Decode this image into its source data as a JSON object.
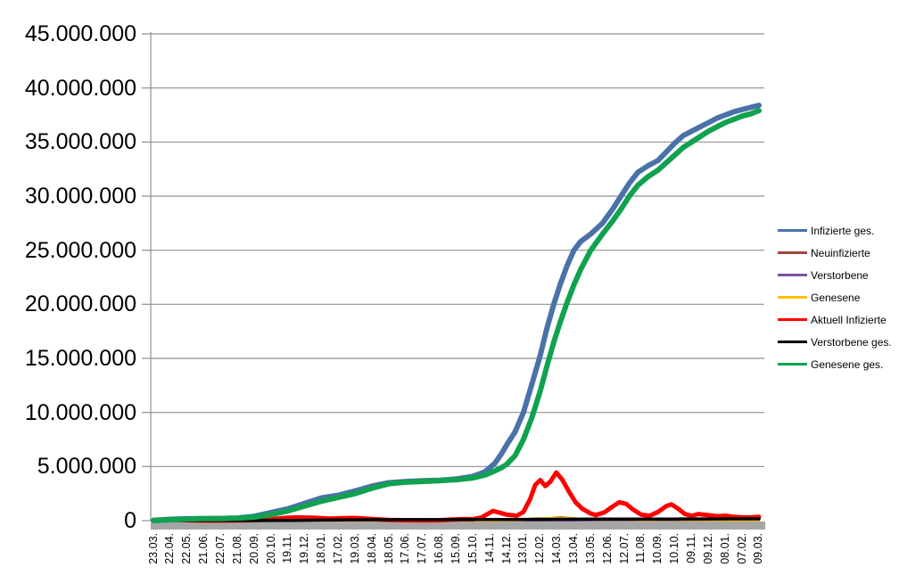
{
  "page": {
    "background": "#FFFFFF",
    "title": ""
  },
  "style": {
    "grid_color": "#909090",
    "axis_color": "#8F8F8F",
    "axis_bar_color": "#A6A6A6",
    "text_color": "#000000"
  },
  "chart_data": {
    "type": "line",
    "title": "",
    "legend_position": "right",
    "grid": "horizontal",
    "value_unit": "persons (series values stored in millions)",
    "y_axis": {
      "min": 0,
      "max": 45000000,
      "tick_interval": 5000000,
      "tick_labels": [
        "45.000.000",
        "40.000.000",
        "35.000.000",
        "30.000.000",
        "25.000.000",
        "20.000.000",
        "15.000.000",
        "10.000.000",
        "5.000.000",
        "0"
      ]
    },
    "x_axis": {
      "tick_labels": [
        "23.03.",
        "22.04.",
        "22.05.",
        "21.06.",
        "22.07.",
        "21.08.",
        "20.09.",
        "20.10.",
        "19.11.",
        "19.12.",
        "18.01.",
        "17.02.",
        "19.03.",
        "18.04.",
        "18.05.",
        "17.06.",
        "17.07.",
        "16.08.",
        "15.09.",
        "15.10.",
        "14.11.",
        "14.12.",
        "13.01.",
        "12.02.",
        "14.03.",
        "13.04.",
        "13.05.",
        "12.06.",
        "12.07.",
        "11.08.",
        "10.09.",
        "10.10.",
        "09.11.",
        "09.12.",
        "08.01.",
        "07.02.",
        "09.03."
      ]
    },
    "series": [
      {
        "name": "Infizierte ges.",
        "color": "#4A72A8",
        "line_width": 6,
        "points_millions": [
          [
            0,
            0.03
          ],
          [
            1,
            0.12
          ],
          [
            2,
            0.17
          ],
          [
            3,
            0.19
          ],
          [
            4,
            0.2
          ],
          [
            5,
            0.24
          ],
          [
            6,
            0.4
          ],
          [
            7,
            0.75
          ],
          [
            8,
            1.1
          ],
          [
            9,
            1.6
          ],
          [
            10,
            2.1
          ],
          [
            11,
            2.35
          ],
          [
            12,
            2.75
          ],
          [
            13,
            3.2
          ],
          [
            14,
            3.5
          ],
          [
            15,
            3.62
          ],
          [
            16,
            3.68
          ],
          [
            17,
            3.73
          ],
          [
            18,
            3.85
          ],
          [
            19,
            4.1
          ],
          [
            19.7,
            4.5
          ],
          [
            20.3,
            5.3
          ],
          [
            20.7,
            6.2
          ],
          [
            21,
            7.0
          ],
          [
            21.5,
            8.2
          ],
          [
            22,
            10.0
          ],
          [
            22.5,
            12.6
          ],
          [
            23,
            15.3
          ],
          [
            23.4,
            17.8
          ],
          [
            23.8,
            20.0
          ],
          [
            24.2,
            21.9
          ],
          [
            24.6,
            23.6
          ],
          [
            25,
            25.0
          ],
          [
            25.4,
            25.8
          ],
          [
            26,
            26.5
          ],
          [
            26.7,
            27.5
          ],
          [
            27.3,
            28.8
          ],
          [
            27.8,
            30.0
          ],
          [
            28.3,
            31.2
          ],
          [
            28.8,
            32.2
          ],
          [
            29.4,
            32.8
          ],
          [
            30,
            33.3
          ],
          [
            30.5,
            34.1
          ],
          [
            31,
            34.9
          ],
          [
            31.5,
            35.6
          ],
          [
            32,
            36.0
          ],
          [
            32.5,
            36.4
          ],
          [
            33,
            36.8
          ],
          [
            33.5,
            37.2
          ],
          [
            34,
            37.5
          ],
          [
            34.5,
            37.8
          ],
          [
            35,
            38.0
          ],
          [
            35.5,
            38.2
          ],
          [
            36,
            38.4
          ]
        ]
      },
      {
        "name": "Neuinfizierte",
        "color": "#9E4741",
        "line_width": 2.6,
        "points_millions": [
          [
            0,
            0.005
          ],
          [
            6,
            0.01
          ],
          [
            7,
            0.02
          ],
          [
            8,
            0.03
          ],
          [
            9,
            0.03
          ],
          [
            10,
            0.02
          ],
          [
            11,
            0.015
          ],
          [
            12,
            0.02
          ],
          [
            13,
            0.015
          ],
          [
            14,
            0.01
          ],
          [
            16,
            0.003
          ],
          [
            18,
            0.01
          ],
          [
            19,
            0.015
          ],
          [
            20,
            0.05
          ],
          [
            21,
            0.04
          ],
          [
            22,
            0.1
          ],
          [
            22.7,
            0.2
          ],
          [
            23,
            0.22
          ],
          [
            23.5,
            0.2
          ],
          [
            24,
            0.28
          ],
          [
            24.3,
            0.3
          ],
          [
            25,
            0.2
          ],
          [
            26,
            0.08
          ],
          [
            27,
            0.1
          ],
          [
            28,
            0.12
          ],
          [
            29,
            0.07
          ],
          [
            30,
            0.09
          ],
          [
            31,
            0.11
          ],
          [
            32,
            0.07
          ],
          [
            33,
            0.05
          ],
          [
            34,
            0.06
          ],
          [
            35,
            0.04
          ],
          [
            36,
            0.04
          ]
        ]
      },
      {
        "name": "Verstorbene",
        "color": "#7A52A0",
        "line_width": 2,
        "points_millions": [
          [
            0,
            0.001
          ],
          [
            9,
            0.005
          ],
          [
            12,
            0.004
          ],
          [
            20,
            0.003
          ],
          [
            23,
            0.002
          ],
          [
            36,
            0.001
          ]
        ]
      },
      {
        "name": "Genesene",
        "color": "#FFC000",
        "line_width": 2.6,
        "points_millions": [
          [
            0,
            0.002
          ],
          [
            7,
            0.01
          ],
          [
            8,
            0.015
          ],
          [
            9,
            0.015
          ],
          [
            10,
            0.012
          ],
          [
            12,
            0.01
          ],
          [
            14,
            0.006
          ],
          [
            16,
            0.002
          ],
          [
            18,
            0.004
          ],
          [
            20,
            0.01
          ],
          [
            21,
            0.015
          ],
          [
            22,
            0.06
          ],
          [
            22.5,
            0.15
          ],
          [
            23,
            0.2
          ],
          [
            23.5,
            0.22
          ],
          [
            24,
            0.25
          ],
          [
            24.5,
            0.24
          ],
          [
            25,
            0.2
          ],
          [
            25.5,
            0.15
          ],
          [
            26,
            0.1
          ],
          [
            27,
            0.08
          ],
          [
            28,
            0.1
          ],
          [
            29,
            0.06
          ],
          [
            30,
            0.07
          ],
          [
            31,
            0.09
          ],
          [
            32,
            0.06
          ],
          [
            33,
            0.04
          ],
          [
            34,
            0.04
          ],
          [
            35,
            0.03
          ],
          [
            36,
            0.03
          ]
        ]
      },
      {
        "name": "Aktuell Infizierte",
        "color": "#FF0000",
        "line_width": 5,
        "points_millions": [
          [
            0,
            0.05
          ],
          [
            0.8,
            0.1
          ],
          [
            1,
            0.09
          ],
          [
            2,
            0.03
          ],
          [
            3,
            0.01
          ],
          [
            4,
            0.01
          ],
          [
            5,
            0.02
          ],
          [
            6,
            0.04
          ],
          [
            7,
            0.12
          ],
          [
            7.8,
            0.25
          ],
          [
            8.5,
            0.3
          ],
          [
            9.5,
            0.27
          ],
          [
            10.5,
            0.18
          ],
          [
            11.3,
            0.22
          ],
          [
            11.8,
            0.25
          ],
          [
            12.2,
            0.23
          ],
          [
            13,
            0.15
          ],
          [
            14,
            0.07
          ],
          [
            15,
            0.03
          ],
          [
            16,
            0.02
          ],
          [
            17,
            0.03
          ],
          [
            17.8,
            0.1
          ],
          [
            18.5,
            0.14
          ],
          [
            19,
            0.12
          ],
          [
            19.5,
            0.3
          ],
          [
            20.2,
            0.9
          ],
          [
            21,
            0.55
          ],
          [
            21.6,
            0.45
          ],
          [
            22,
            0.8
          ],
          [
            22.4,
            2.0
          ],
          [
            22.7,
            3.3
          ],
          [
            23,
            3.75
          ],
          [
            23.3,
            3.2
          ],
          [
            23.6,
            3.6
          ],
          [
            23.95,
            4.45
          ],
          [
            24.3,
            3.8
          ],
          [
            24.7,
            2.7
          ],
          [
            25.1,
            1.7
          ],
          [
            25.5,
            1.1
          ],
          [
            26,
            0.65
          ],
          [
            26.3,
            0.52
          ],
          [
            26.8,
            0.75
          ],
          [
            27.3,
            1.3
          ],
          [
            27.7,
            1.7
          ],
          [
            28.1,
            1.55
          ],
          [
            28.5,
            1.05
          ],
          [
            29,
            0.55
          ],
          [
            29.5,
            0.45
          ],
          [
            30,
            0.8
          ],
          [
            30.5,
            1.35
          ],
          [
            30.8,
            1.5
          ],
          [
            31.2,
            1.1
          ],
          [
            31.6,
            0.6
          ],
          [
            32,
            0.45
          ],
          [
            32.4,
            0.6
          ],
          [
            33,
            0.5
          ],
          [
            33.5,
            0.4
          ],
          [
            34,
            0.45
          ],
          [
            34.5,
            0.35
          ],
          [
            35,
            0.3
          ],
          [
            35.5,
            0.3
          ],
          [
            36,
            0.35
          ]
        ]
      },
      {
        "name": "Verstorbene ges.",
        "color": "#000000",
        "line_width": 3.5,
        "points_millions": [
          [
            0,
            0.0
          ],
          [
            2,
            0.008
          ],
          [
            4,
            0.009
          ],
          [
            6,
            0.01
          ],
          [
            8,
            0.015
          ],
          [
            9,
            0.03
          ],
          [
            10,
            0.047
          ],
          [
            11,
            0.063
          ],
          [
            12,
            0.073
          ],
          [
            13,
            0.079
          ],
          [
            14,
            0.085
          ],
          [
            15,
            0.089
          ],
          [
            16,
            0.091
          ],
          [
            17,
            0.092
          ],
          [
            18,
            0.093
          ],
          [
            19,
            0.095
          ],
          [
            20,
            0.098
          ],
          [
            21,
            0.105
          ],
          [
            22,
            0.113
          ],
          [
            23,
            0.119
          ],
          [
            24,
            0.125
          ],
          [
            25,
            0.131
          ],
          [
            26,
            0.136
          ],
          [
            27,
            0.139
          ],
          [
            28,
            0.141
          ],
          [
            29,
            0.144
          ],
          [
            30,
            0.147
          ],
          [
            31,
            0.15
          ],
          [
            32,
            0.153
          ],
          [
            33,
            0.157
          ],
          [
            34,
            0.162
          ],
          [
            35,
            0.166
          ],
          [
            36,
            0.168
          ]
        ]
      },
      {
        "name": "Genesene ges.",
        "color": "#10A24F",
        "line_width": 6,
        "points_millions": [
          [
            0,
            0.01
          ],
          [
            1,
            0.08
          ],
          [
            2,
            0.15
          ],
          [
            3,
            0.18
          ],
          [
            4,
            0.19
          ],
          [
            5,
            0.22
          ],
          [
            6,
            0.32
          ],
          [
            7,
            0.55
          ],
          [
            8,
            0.9
          ],
          [
            9,
            1.35
          ],
          [
            10,
            1.8
          ],
          [
            11,
            2.15
          ],
          [
            12,
            2.5
          ],
          [
            13,
            3.0
          ],
          [
            14,
            3.4
          ],
          [
            15,
            3.55
          ],
          [
            16,
            3.62
          ],
          [
            17,
            3.68
          ],
          [
            18,
            3.78
          ],
          [
            19,
            3.95
          ],
          [
            19.7,
            4.2
          ],
          [
            20.3,
            4.6
          ],
          [
            20.7,
            4.9
          ],
          [
            21,
            5.2
          ],
          [
            21.5,
            6.0
          ],
          [
            22,
            7.5
          ],
          [
            22.5,
            9.5
          ],
          [
            23,
            12.0
          ],
          [
            23.4,
            14.3
          ],
          [
            23.8,
            16.5
          ],
          [
            24.2,
            18.4
          ],
          [
            24.6,
            20.2
          ],
          [
            25,
            21.8
          ],
          [
            25.4,
            23.2
          ],
          [
            26,
            25.0
          ],
          [
            26.7,
            26.5
          ],
          [
            27.3,
            27.7
          ],
          [
            27.8,
            28.8
          ],
          [
            28.3,
            30.0
          ],
          [
            28.8,
            31.0
          ],
          [
            29.4,
            31.8
          ],
          [
            30,
            32.4
          ],
          [
            30.5,
            33.1
          ],
          [
            31,
            33.8
          ],
          [
            31.5,
            34.5
          ],
          [
            32,
            35.0
          ],
          [
            32.5,
            35.5
          ],
          [
            33,
            36.0
          ],
          [
            33.5,
            36.4
          ],
          [
            34,
            36.8
          ],
          [
            34.5,
            37.1
          ],
          [
            35,
            37.4
          ],
          [
            35.5,
            37.6
          ],
          [
            36,
            37.9
          ]
        ]
      }
    ]
  }
}
